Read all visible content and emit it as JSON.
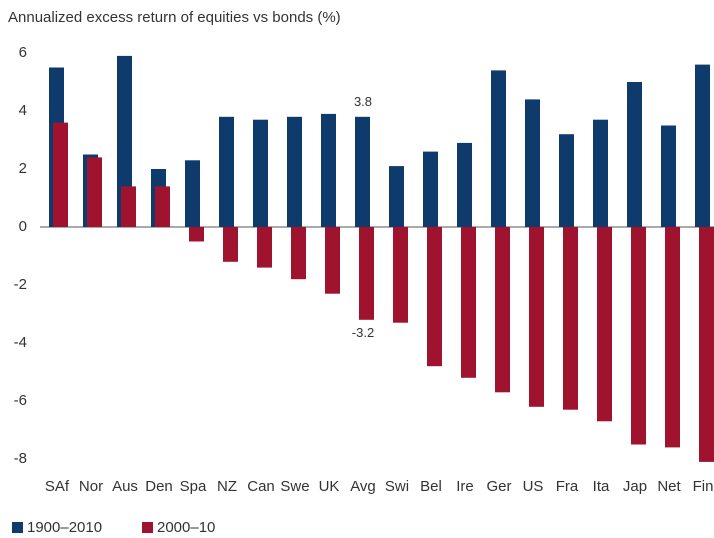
{
  "chart_data": {
    "type": "bar",
    "title": "Annualized excess return of equities vs bonds (%)",
    "categories": [
      "SAf",
      "Nor",
      "Aus",
      "Den",
      "Spa",
      "NZ",
      "Can",
      "Swe",
      "UK",
      "Avg",
      "Swi",
      "Bel",
      "Ire",
      "Ger",
      "US",
      "Fra",
      "Ita",
      "Jap",
      "Net",
      "Fin"
    ],
    "series": [
      {
        "name": "1900–2010",
        "color": "#0e3a6c",
        "values": [
          5.5,
          2.5,
          5.9,
          2.0,
          2.3,
          3.8,
          3.7,
          3.8,
          3.9,
          3.8,
          2.1,
          2.6,
          2.9,
          5.4,
          4.4,
          3.2,
          3.7,
          5.0,
          3.5,
          5.6
        ]
      },
      {
        "name": "2000–10",
        "color": "#a0132f",
        "values": [
          3.6,
          2.4,
          1.4,
          1.4,
          -0.5,
          -1.2,
          -1.4,
          -1.8,
          -2.3,
          -3.2,
          -3.3,
          -4.8,
          -5.2,
          -5.7,
          -6.2,
          -6.3,
          -6.7,
          -7.5,
          -7.6,
          -8.1
        ]
      }
    ],
    "ylim": [
      -8,
      6
    ],
    "yticks": [
      -8,
      -6,
      -4,
      -2,
      0,
      2,
      4,
      6
    ],
    "grid": false
  }
}
